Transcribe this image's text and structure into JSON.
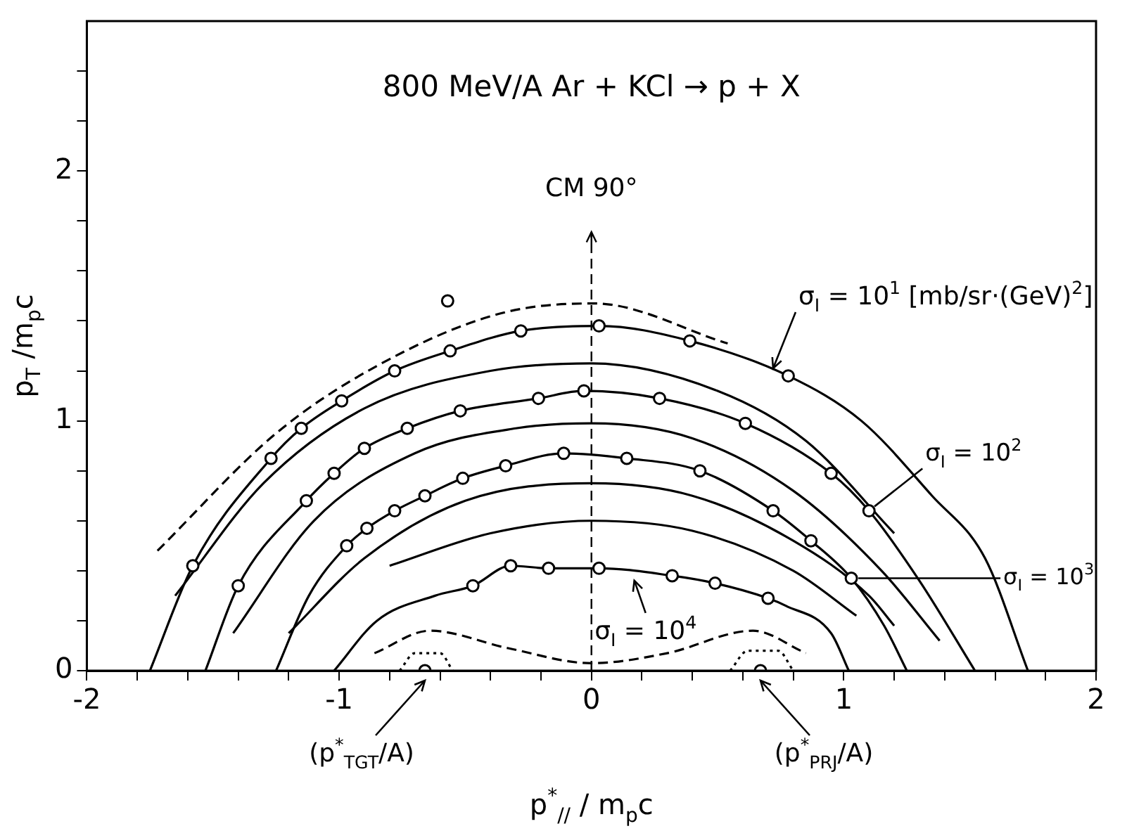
{
  "chart_data": {
    "type": "line",
    "title": "800 MeV/A Ar + KCl → p + X",
    "xlabel": "p$^{*}$$_{//}$ / m$_{p}$c",
    "ylabel": "p$_{T}$ /m$_{p}$c",
    "xlim": [
      -2,
      2
    ],
    "ylim": [
      0,
      2.6
    ],
    "xticks": [
      -2,
      {
        "value": -1.8,
        "label": null
      },
      {
        "value": -1.6,
        "label": null
      },
      {
        "value": -1.4,
        "label": null
      },
      {
        "value": -1.2,
        "label": null
      },
      -1,
      {
        "value": -0.8,
        "label": null
      },
      {
        "value": -0.6,
        "label": null
      },
      {
        "value": -0.4,
        "label": null
      },
      {
        "value": -0.2,
        "label": null
      },
      0,
      {
        "value": 0.2,
        "label": null
      },
      {
        "value": 0.4,
        "label": null
      },
      {
        "value": 0.6,
        "label": null
      },
      {
        "value": 0.8,
        "label": null
      },
      1,
      {
        "value": 1.2,
        "label": null
      },
      {
        "value": 1.4,
        "label": null
      },
      {
        "value": 1.6,
        "label": null
      },
      {
        "value": 1.8,
        "label": null
      },
      2
    ],
    "yticks": [
      0,
      {
        "value": 0.2,
        "label": null
      },
      {
        "value": 0.4,
        "label": null
      },
      {
        "value": 0.6,
        "label": null
      },
      {
        "value": 0.8,
        "label": null
      },
      1,
      {
        "value": 1.2,
        "label": null
      },
      {
        "value": 1.4,
        "label": null
      },
      {
        "value": 1.6,
        "label": null
      },
      {
        "value": 1.8,
        "label": null
      },
      2,
      {
        "value": 2.2,
        "label": null
      },
      {
        "value": 2.4,
        "label": null
      }
    ],
    "series": [
      {
        "color": "#000000",
        "line_style": "solid",
        "x": [
          -1.75,
          -1.58,
          -1.27,
          -1.15,
          -0.99,
          -0.78,
          -0.56,
          -0.28,
          0.03,
          0.39,
          0.78,
          1.07,
          1.35,
          1.56,
          1.73
        ],
        "values": [
          0,
          0.42,
          0.85,
          0.97,
          1.08,
          1.2,
          1.28,
          1.36,
          1.38,
          1.32,
          1.18,
          1.0,
          0.7,
          0.45,
          0
        ]
      },
      {
        "color": "#000000",
        "line_style": "solid",
        "x": [
          -1.53,
          -1.4,
          -1.13,
          -1.02,
          -0.9,
          -0.73,
          -0.52,
          -0.21,
          -0.03,
          0.27,
          0.61,
          0.95,
          1.1,
          1.3,
          1.52
        ],
        "values": [
          0,
          0.34,
          0.68,
          0.79,
          0.89,
          0.97,
          1.04,
          1.09,
          1.12,
          1.09,
          0.99,
          0.79,
          0.64,
          0.36,
          0
        ]
      },
      {
        "color": "#000000",
        "line_style": "solid",
        "x": [
          -1.25,
          -1.12,
          -0.97,
          -0.89,
          -0.78,
          -0.66,
          -0.51,
          -0.34,
          -0.11,
          0.14,
          0.43,
          0.72,
          0.87,
          1.03,
          1.16,
          1.25
        ],
        "values": [
          0,
          0.3,
          0.5,
          0.57,
          0.64,
          0.7,
          0.77,
          0.82,
          0.87,
          0.85,
          0.8,
          0.64,
          0.52,
          0.37,
          0.18,
          0
        ]
      },
      {
        "color": "#000000",
        "line_style": "solid",
        "x": [
          -1.02,
          -0.85,
          -0.62,
          -0.47,
          -0.32,
          -0.17,
          0.03,
          0.32,
          0.49,
          0.7,
          0.77,
          0.95,
          1.02
        ],
        "values": [
          0,
          0.2,
          0.3,
          0.34,
          0.42,
          0.41,
          0.41,
          0.38,
          0.35,
          0.29,
          0.26,
          0.15,
          0
        ]
      },
      {
        "color": "#000000",
        "line_style": "dashed",
        "x": [
          -1.72,
          -1.25,
          -0.85,
          -0.36,
          0.01,
          0.54
        ],
        "values": [
          0.48,
          0.95,
          1.22,
          1.43,
          1.47,
          1.31
        ]
      },
      {
        "color": "#000000",
        "line_style": "solid",
        "x": [
          -1.65,
          -1.3,
          -0.9,
          -0.4,
          0,
          0.5,
          0.85,
          1.2
        ],
        "values": [
          0.3,
          0.75,
          1.05,
          1.2,
          1.23,
          1.12,
          0.92,
          0.55
        ]
      },
      {
        "color": "#000000",
        "line_style": "solid",
        "x": [
          -1.42,
          -1.1,
          -0.7,
          -0.3,
          0,
          0.4,
          0.8,
          1.15,
          1.38
        ],
        "values": [
          0.15,
          0.6,
          0.87,
          0.97,
          0.99,
          0.93,
          0.72,
          0.4,
          0.12
        ]
      },
      {
        "color": "#000000",
        "line_style": "solid",
        "x": [
          -1.2,
          -0.9,
          -0.5,
          0,
          0.4,
          0.8,
          1.1,
          1.2
        ],
        "values": [
          0.15,
          0.45,
          0.68,
          0.75,
          0.7,
          0.52,
          0.3,
          0.18
        ]
      },
      {
        "color": "#000000",
        "line_style": "solid",
        "x": [
          -0.8,
          -0.4,
          0,
          0.4,
          0.8,
          1.05
        ],
        "values": [
          0.42,
          0.55,
          0.6,
          0.56,
          0.4,
          0.22
        ]
      },
      {
        "color": "#000000",
        "line_style": "dashed",
        "x": [
          -0.86,
          -0.64,
          -0.33,
          0,
          0.3,
          0.64,
          0.85
        ],
        "values": [
          0.07,
          0.16,
          0.09,
          0.03,
          0.07,
          0.16,
          0.07
        ]
      },
      {
        "color": "#000000",
        "line_style": "dotted",
        "x": [
          -0.76,
          -0.7,
          -0.6,
          -0.55
        ],
        "values": [
          0,
          0.07,
          0.07,
          0
        ]
      },
      {
        "color": "#000000",
        "line_style": "dotted",
        "x": [
          0.55,
          0.62,
          0.74,
          0.8
        ],
        "values": [
          0,
          0.08,
          0.08,
          0
        ]
      },
      {
        "type": "scatter",
        "marker": "circle",
        "color": "#000000",
        "x": [
          -1.58,
          -1.27,
          -1.15,
          -0.99,
          -0.78,
          -0.56,
          -0.28,
          0.03,
          0.39,
          0.78,
          -1.4,
          -1.13,
          -1.02,
          -0.9,
          -0.73,
          -0.52,
          -0.21,
          -0.03,
          0.27,
          0.61,
          0.95,
          1.1,
          -0.97,
          -0.89,
          -0.78,
          -0.66,
          -0.51,
          -0.34,
          -0.11,
          0.14,
          0.43,
          0.72,
          0.87,
          1.03,
          -0.47,
          -0.32,
          -0.17,
          0.03,
          0.32,
          0.49,
          0.7,
          -0.57
        ],
        "values": [
          0.42,
          0.85,
          0.97,
          1.08,
          1.2,
          1.28,
          1.36,
          1.38,
          1.32,
          1.18,
          0.34,
          0.68,
          0.79,
          0.89,
          0.97,
          1.04,
          1.09,
          1.12,
          1.09,
          0.99,
          0.79,
          0.64,
          0.5,
          0.57,
          0.64,
          0.7,
          0.77,
          0.82,
          0.87,
          0.85,
          0.8,
          0.64,
          0.52,
          0.37,
          0.34,
          0.42,
          0.41,
          0.41,
          0.38,
          0.35,
          0.29,
          1.48
        ]
      },
      {
        "type": "scatter",
        "marker": "circle",
        "color": "#000000",
        "x": [
          -0.66,
          0.67
        ],
        "values": [
          0,
          0
        ]
      }
    ],
    "ref_lines": [
      {
        "axis": "x",
        "value": 0,
        "label": "CM 90°",
        "line_style": "dashed"
      }
    ],
    "annotations": [
      {
        "text": "σ$_{I}$ = 10$^{1}$ [mb/sr·(GeV)$^{2}$]",
        "x": 0.72,
        "y": 1.21
      },
      {
        "text": "σ$_{I}$ = 10$^{2}$",
        "x": 1.1,
        "y": 0.64
      },
      {
        "text": "σ$_{I}$ = 10$^{3}$",
        "x": 1.03,
        "y": 0.37
      },
      {
        "text": "σ$_{I}$ = 10$^{4}$",
        "x": 0.17,
        "y": 0.4
      },
      {
        "text": "(p$^{*}$$_{TGT}$/A)",
        "x": -0.66,
        "y": 0
      },
      {
        "text": "(p$^{*}$$_{PRJ}$/A)",
        "x": 0.67,
        "y": 0
      }
    ]
  }
}
